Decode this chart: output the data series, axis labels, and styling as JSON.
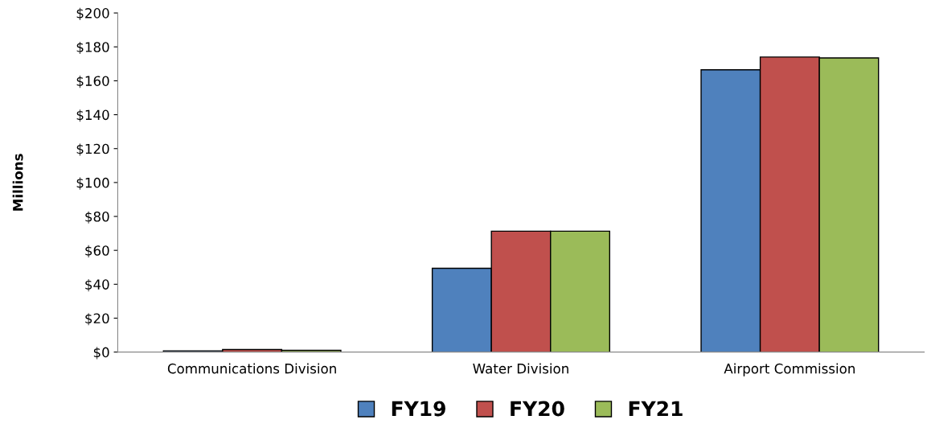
{
  "chart_data": {
    "type": "bar",
    "ylabel": "Millions",
    "categories": [
      "Communications Division",
      "Water Division",
      "Airport Commission"
    ],
    "series": [
      {
        "name": "FY19",
        "color": "#4f81bd",
        "values": [
          0.7,
          49.4,
          166.5
        ]
      },
      {
        "name": "FY20",
        "color": "#c0504d",
        "values": [
          1.5,
          71.3,
          174
        ]
      },
      {
        "name": "FY21",
        "color": "#9bbb59",
        "values": [
          1.0,
          71.3,
          173.5
        ]
      }
    ],
    "ylim": [
      0,
      200
    ],
    "yticks": [
      {
        "value": 0,
        "label": "$0"
      },
      {
        "value": 20,
        "label": "$20"
      },
      {
        "value": 40,
        "label": "$40"
      },
      {
        "value": 60,
        "label": "$60"
      },
      {
        "value": 80,
        "label": "$80"
      },
      {
        "value": 100,
        "label": "$100"
      },
      {
        "value": 120,
        "label": "$120"
      },
      {
        "value": 140,
        "label": "$140"
      },
      {
        "value": 160,
        "label": "$160"
      },
      {
        "value": 180,
        "label": "$180"
      },
      {
        "value": 200,
        "label": "$200"
      }
    ],
    "grid": false,
    "legend": "bottom"
  }
}
